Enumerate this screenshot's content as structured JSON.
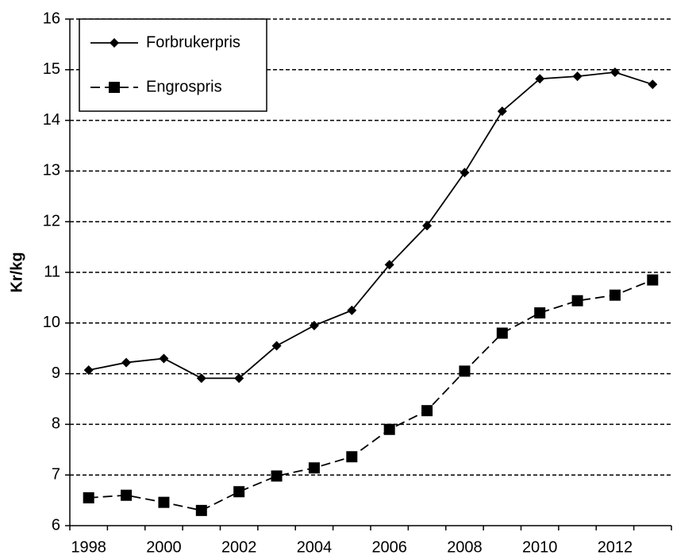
{
  "chart_data": {
    "type": "line",
    "ylabel": "Kr/kg",
    "categories": [
      "1998",
      null,
      "2000",
      null,
      "2002",
      null,
      "2004",
      null,
      "2006",
      null,
      "2008",
      null,
      "2010",
      null,
      "2012",
      null
    ],
    "series": [
      {
        "name": "Forbrukerpris",
        "color": "#000000",
        "line_style": "solid",
        "marker": "diamond",
        "values": [
          9.07,
          9.22,
          9.3,
          8.91,
          8.91,
          9.55,
          9.95,
          10.25,
          11.15,
          11.92,
          12.97,
          14.18,
          14.82,
          14.87,
          14.95,
          14.71
        ]
      },
      {
        "name": "Engrospris",
        "color": "#000000",
        "line_style": "dashed",
        "marker": "square",
        "values": [
          6.55,
          6.6,
          6.46,
          6.3,
          6.67,
          6.98,
          7.14,
          7.36,
          7.9,
          8.27,
          9.05,
          9.8,
          10.2,
          10.44,
          10.55,
          10.85
        ]
      }
    ],
    "ylim": [
      6,
      16
    ],
    "yticks": [
      6,
      7,
      8,
      9,
      10,
      11,
      12,
      13,
      14,
      15,
      16
    ],
    "grid": true,
    "legend": "top-left"
  }
}
